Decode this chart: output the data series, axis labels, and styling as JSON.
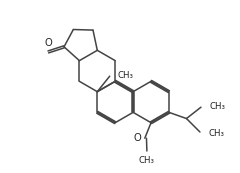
{
  "bg_color": "#ffffff",
  "line_color": "#444444",
  "lw": 1.1,
  "text_color": "#222222",
  "font_size": 6.2,
  "xlim": [
    -0.5,
    8.5
  ],
  "ylim": [
    -0.8,
    7.5
  ]
}
